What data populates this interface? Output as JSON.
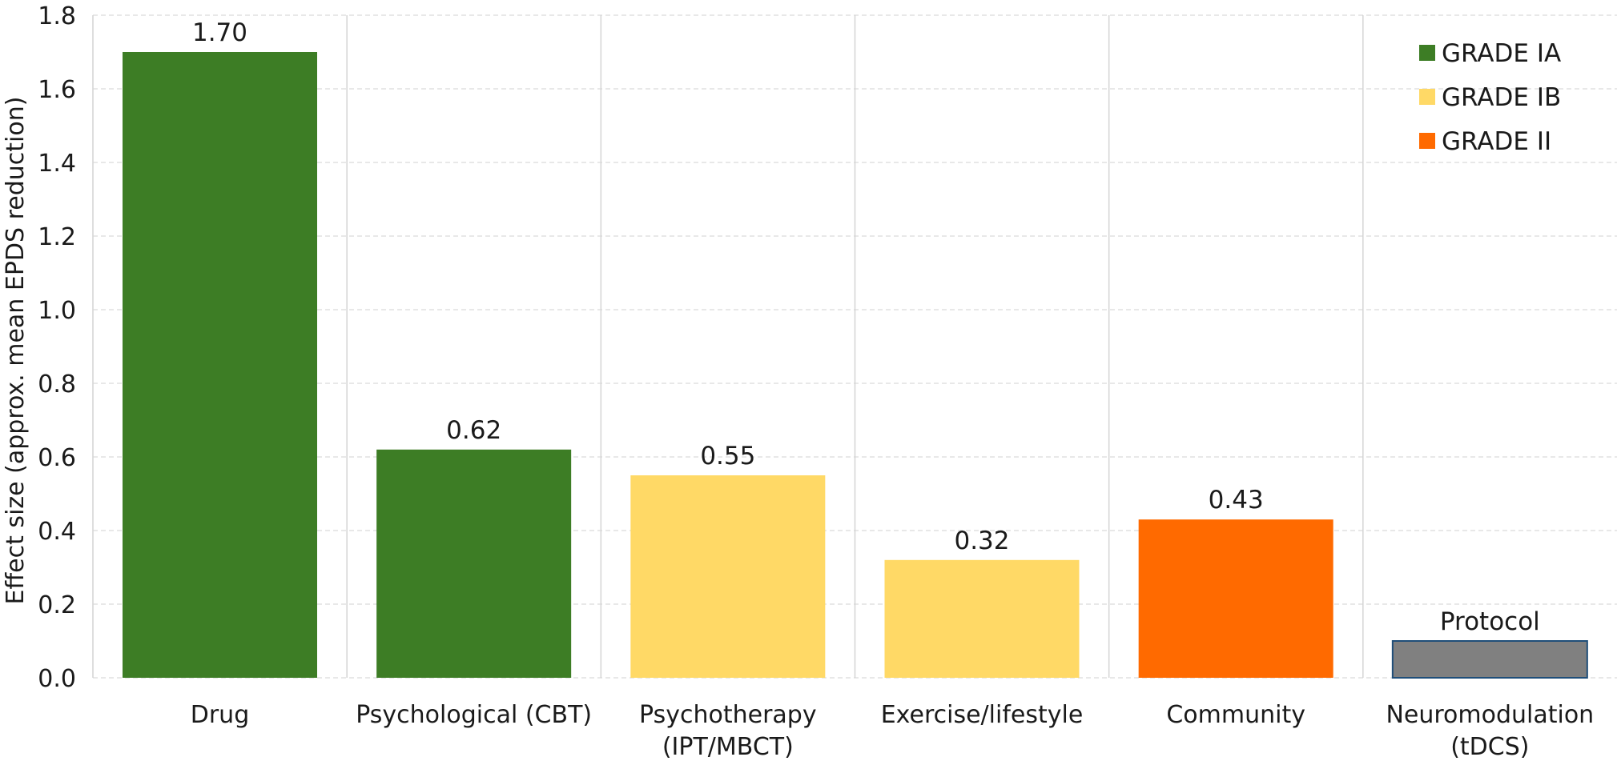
{
  "chart_data": {
    "type": "bar",
    "title": "",
    "xlabel": "",
    "ylabel": "Effect size (approx. mean EPDS reduction)",
    "ylim": [
      0,
      1.8
    ],
    "yticks": [
      "0.0",
      "0.2",
      "0.4",
      "0.6",
      "0.8",
      "1.0",
      "1.2",
      "1.4",
      "1.6",
      "1.8"
    ],
    "grid": true,
    "legend_position": "top-right",
    "categories": [
      [
        "Drug"
      ],
      [
        "Psychological (CBT)"
      ],
      [
        "Psychotherapy",
        "(IPT/MBCT)"
      ],
      [
        "Exercise/lifestyle"
      ],
      [
        "Community"
      ],
      [
        "Neuromodulation",
        "(tDCS)"
      ]
    ],
    "values": [
      1.7,
      0.62,
      0.55,
      0.32,
      0.43,
      0.1
    ],
    "data_labels": [
      "1.70",
      "0.62",
      "0.55",
      "0.32",
      "0.43",
      "Protocol"
    ],
    "bar_grades": [
      "GRADE IA",
      "GRADE IA",
      "GRADE IB",
      "GRADE IB",
      "GRADE II",
      "Protocol"
    ],
    "legend": [
      {
        "label": "GRADE IA",
        "color": "#3d7d25"
      },
      {
        "label": "GRADE IB",
        "color": "#ffd966"
      },
      {
        "label": "GRADE II",
        "color": "#ff6a00"
      }
    ],
    "colors": {
      "GRADE IA": "#3d7d25",
      "GRADE IB": "#ffd966",
      "GRADE II": "#ff6a00",
      "Protocol": "#808080",
      "protocol_border": "#1f4e79",
      "grid": "#e0e0e0",
      "separator": "#d4d4d4"
    }
  }
}
